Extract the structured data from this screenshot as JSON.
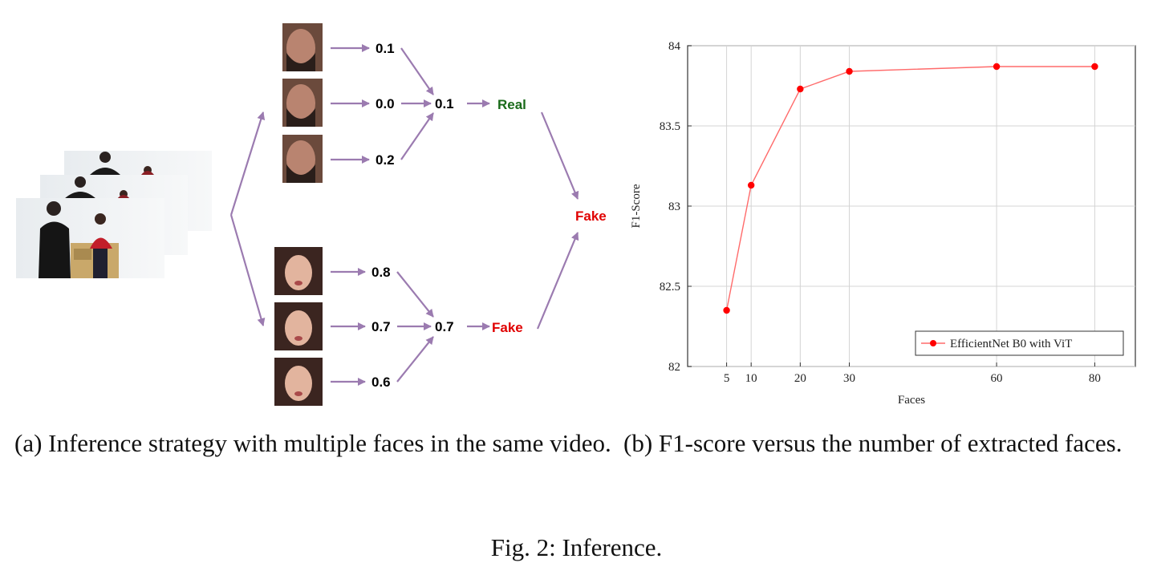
{
  "diagram": {
    "man_scores": [
      "0.1",
      "0.0",
      "0.2"
    ],
    "man_aggregate": "0.1",
    "man_label": "Real",
    "woman_scores": [
      "0.8",
      "0.7",
      "0.6"
    ],
    "woman_aggregate": "0.7",
    "woman_label": "Fake",
    "final_label": "Fake"
  },
  "chart_data": {
    "type": "line",
    "xlabel": "Faces",
    "ylabel": "F1-Score",
    "x": [
      5,
      10,
      20,
      30,
      60,
      80
    ],
    "xticks": [
      "5",
      "10",
      "20",
      "30",
      "60",
      "80"
    ],
    "yticks": [
      "84",
      "83.5",
      "83",
      "82.5",
      "82"
    ],
    "ylim": [
      82,
      84
    ],
    "grid": true,
    "legend_position": "bottom-right",
    "series": [
      {
        "name": "EfficientNet B0 with ViT",
        "color": "#ff0000",
        "values": [
          82.35,
          83.13,
          83.73,
          83.84,
          83.87,
          83.87
        ]
      }
    ]
  },
  "captions": {
    "a": "(a) Inference strategy with multiple faces in the same video.",
    "b": "(b) F1-score versus the number of extracted faces.",
    "figure": "Fig. 2: Inference."
  }
}
